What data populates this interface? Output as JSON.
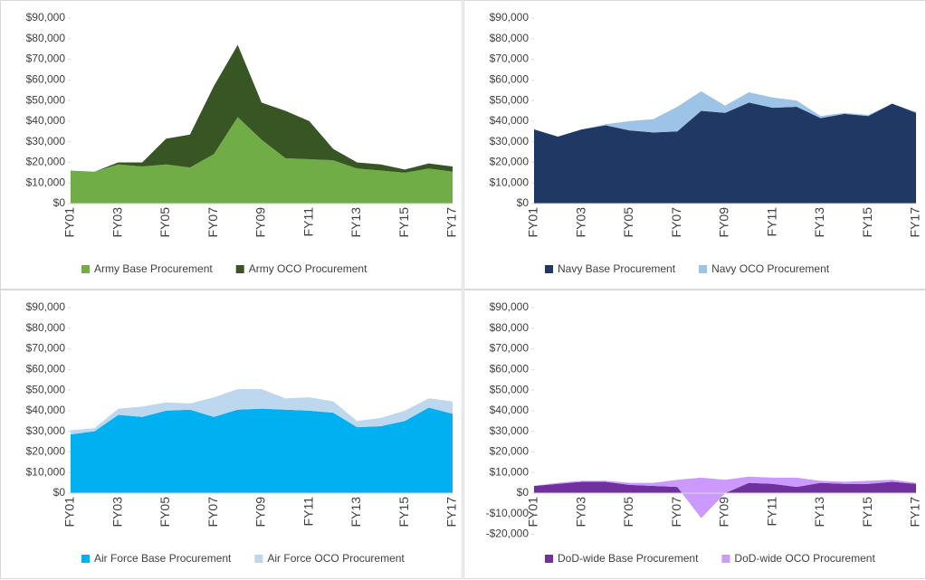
{
  "chart_data": [
    {
      "type": "area",
      "categories": [
        "FY01",
        null,
        "FY03",
        null,
        "FY05",
        null,
        "FY07",
        null,
        "FY09",
        null,
        "FY11",
        null,
        "FY13",
        null,
        "FY15",
        null,
        "FY17"
      ],
      "series": [
        {
          "name": "Army Base Procurement",
          "color": "#70ad47",
          "values": [
            16000,
            15500,
            19000,
            18000,
            19000,
            17500,
            24000,
            42000,
            31000,
            22000,
            21500,
            21000,
            17000,
            16000,
            15000,
            17000,
            15500
          ]
        },
        {
          "name": "Army OCO Procurement",
          "color": "#375623",
          "values": [
            0,
            0,
            1000,
            2000,
            12500,
            16000,
            33000,
            35000,
            18000,
            23000,
            18500,
            5500,
            3000,
            3000,
            1500,
            2500,
            2500
          ]
        }
      ],
      "ylim": [
        0,
        90000
      ],
      "yticks": [
        {
          "value": 0,
          "label": "$0"
        },
        {
          "value": 10000,
          "label": "$10,000"
        },
        {
          "value": 20000,
          "label": "$20,000"
        },
        {
          "value": 30000,
          "label": "$30,000"
        },
        {
          "value": 40000,
          "label": "$40,000"
        },
        {
          "value": 50000,
          "label": "$50,000"
        },
        {
          "value": 60000,
          "label": "$60,000"
        },
        {
          "value": 70000,
          "label": "$70,000"
        },
        {
          "value": 80000,
          "label": "$80,000"
        },
        {
          "value": 90000,
          "label": "$90,000"
        }
      ]
    },
    {
      "type": "area",
      "categories": [
        "FY01",
        null,
        "FY03",
        null,
        "FY05",
        null,
        "FY07",
        null,
        "FY09",
        null,
        "FY11",
        null,
        "FY13",
        null,
        "FY15",
        null,
        "FY17"
      ],
      "series": [
        {
          "name": "Navy Base Procurement",
          "color": "#203864",
          "values": [
            36000,
            32500,
            36000,
            38000,
            35500,
            34500,
            35000,
            45000,
            44000,
            49000,
            46500,
            47000,
            41500,
            43500,
            42500,
            48500,
            44000
          ]
        },
        {
          "name": "Navy OCO Procurement",
          "color": "#9dc3e6",
          "values": [
            0,
            0,
            0,
            500,
            4500,
            6500,
            12000,
            9500,
            3500,
            5000,
            5000,
            3000,
            1000,
            500,
            500,
            0,
            500
          ]
        }
      ],
      "ylim": [
        0,
        90000
      ],
      "yticks": [
        {
          "value": 0,
          "label": "$0"
        },
        {
          "value": 10000,
          "label": "$10,000"
        },
        {
          "value": 20000,
          "label": "$20,000"
        },
        {
          "value": 30000,
          "label": "$30,000"
        },
        {
          "value": 40000,
          "label": "$40,000"
        },
        {
          "value": 50000,
          "label": "$50,000"
        },
        {
          "value": 60000,
          "label": "$60,000"
        },
        {
          "value": 70000,
          "label": "$70,000"
        },
        {
          "value": 80000,
          "label": "$80,000"
        },
        {
          "value": 90000,
          "label": "$90,000"
        }
      ]
    },
    {
      "type": "area",
      "categories": [
        "FY01",
        null,
        "FY03",
        null,
        "FY05",
        null,
        "FY07",
        null,
        "FY09",
        null,
        "FY11",
        null,
        "FY13",
        null,
        "FY15",
        null,
        "FY17"
      ],
      "series": [
        {
          "name": "Air Force Base Procurement",
          "color": "#00b0f0",
          "values": [
            28500,
            30000,
            38000,
            37000,
            40000,
            40500,
            37000,
            40500,
            41000,
            40500,
            40000,
            39000,
            32000,
            32500,
            35000,
            41500,
            38500
          ]
        },
        {
          "name": "Air Force OCO Procurement",
          "color": "#bdd7ee",
          "values": [
            2000,
            1500,
            3000,
            5000,
            4000,
            3000,
            9500,
            10000,
            9500,
            5500,
            6500,
            5500,
            3000,
            4000,
            5000,
            4500,
            6000
          ]
        }
      ],
      "ylim": [
        0,
        90000
      ],
      "yticks": [
        {
          "value": 0,
          "label": "$0"
        },
        {
          "value": 10000,
          "label": "$10,000"
        },
        {
          "value": 20000,
          "label": "$20,000"
        },
        {
          "value": 30000,
          "label": "$30,000"
        },
        {
          "value": 40000,
          "label": "$40,000"
        },
        {
          "value": 50000,
          "label": "$50,000"
        },
        {
          "value": 60000,
          "label": "$60,000"
        },
        {
          "value": 70000,
          "label": "$70,000"
        },
        {
          "value": 80000,
          "label": "$80,000"
        },
        {
          "value": 90000,
          "label": "$90,000"
        }
      ]
    },
    {
      "type": "area",
      "categories": [
        "FY01",
        null,
        "FY03",
        null,
        "FY05",
        null,
        "FY07",
        null,
        "FY09",
        null,
        "FY11",
        null,
        "FY13",
        null,
        "FY15",
        null,
        "FY17"
      ],
      "series": [
        {
          "name": "DoD-wide Base Procurement",
          "color": "#7030a0",
          "values": [
            3500,
            4500,
            5500,
            5500,
            4000,
            3500,
            3000,
            -12000,
            0,
            5000,
            4500,
            3000,
            5000,
            4500,
            4500,
            5500,
            4500
          ]
        },
        {
          "name": "DoD-wide OCO Procurement",
          "color": "#cc99ff",
          "values": [
            0,
            500,
            500,
            500,
            1000,
            1500,
            3500,
            19500,
            6500,
            3000,
            3000,
            4500,
            1000,
            1000,
            1500,
            1000,
            500
          ]
        }
      ],
      "ylim": [
        -20000,
        90000
      ],
      "yticks": [
        {
          "value": -20000,
          "label": "-$20,000"
        },
        {
          "value": -10000,
          "label": "-$10,000"
        },
        {
          "value": 0,
          "label": "$0"
        },
        {
          "value": 10000,
          "label": "$10,000"
        },
        {
          "value": 20000,
          "label": "$20,000"
        },
        {
          "value": 30000,
          "label": "$30,000"
        },
        {
          "value": 40000,
          "label": "$40,000"
        },
        {
          "value": 50000,
          "label": "$50,000"
        },
        {
          "value": 60000,
          "label": "$60,000"
        },
        {
          "value": 70000,
          "label": "$70,000"
        },
        {
          "value": 80000,
          "label": "$80,000"
        },
        {
          "value": 90000,
          "label": "$90,000"
        }
      ]
    }
  ]
}
